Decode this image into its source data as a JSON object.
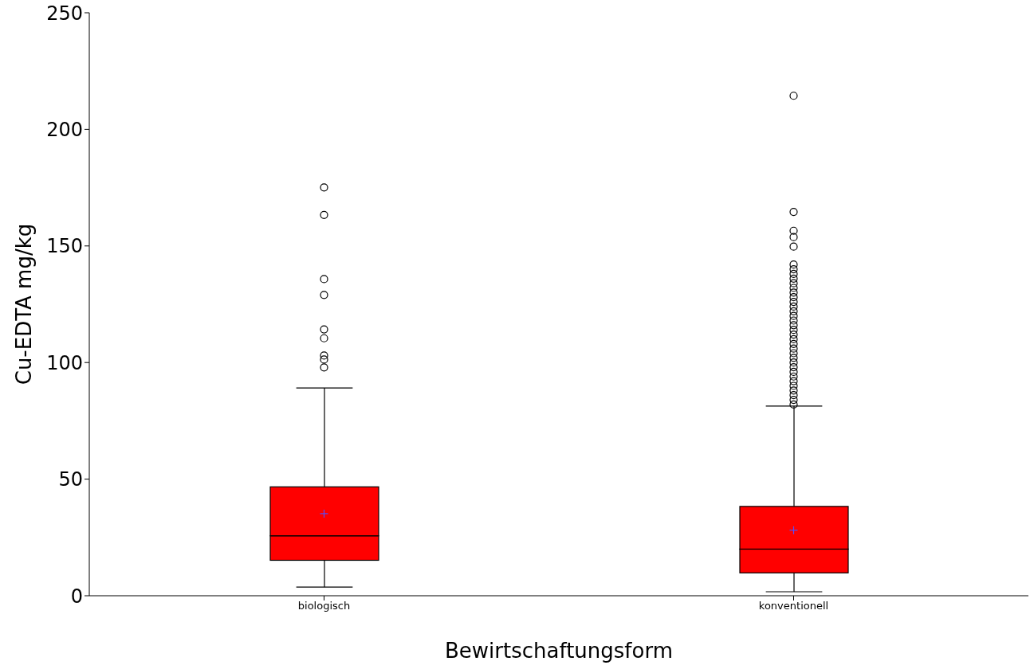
{
  "chart_data": {
    "type": "box",
    "xlabel": "Bewirtschaftungsform",
    "ylabel": "Cu-EDTA mg/kg",
    "categories": [
      "biologisch",
      "konventionell"
    ],
    "color": "#ff0000",
    "ylim": [
      0,
      250
    ],
    "yticks": [
      0,
      50,
      100,
      150,
      200,
      250
    ],
    "boxes": [
      {
        "low": 3.7,
        "q1": 15.2,
        "median": 25.7,
        "q3": 46.7,
        "high": 89.1,
        "mean": 35.2,
        "outliers": [
          175.1,
          163.3,
          135.8,
          129,
          114.2,
          110.4,
          103,
          101.3,
          97.9
        ]
      },
      {
        "low": 1.7,
        "q1": 9.8,
        "median": 20,
        "q3": 38.3,
        "high": 81.3,
        "mean": 28.1,
        "outliers": [
          214.4,
          164.6,
          156.5,
          153.8,
          149.7,
          142,
          140,
          138,
          136,
          134,
          132,
          130,
          128,
          126,
          124,
          122,
          120,
          118,
          116,
          114,
          112,
          110,
          108,
          106,
          104,
          102,
          100,
          98,
          96,
          94,
          92,
          90,
          88,
          86,
          84,
          82
        ]
      }
    ]
  }
}
